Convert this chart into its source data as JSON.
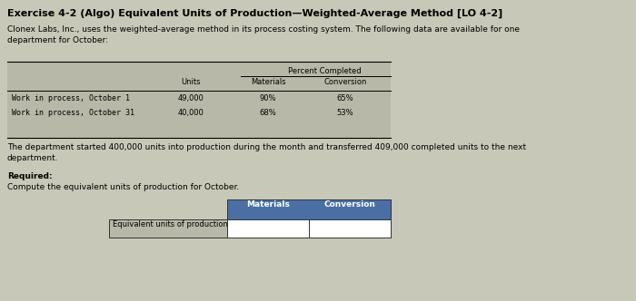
{
  "title": "Exercise 4-2 (Algo) Equivalent Units of Production—Weighted-Average Method [LO 4-2]",
  "intro_text": "Clonex Labs, Inc., uses the weighted-average method in its process costing system. The following data are available for one\ndepartment for October:",
  "table1_header_top": "Percent Completed",
  "table1_col_headers": [
    "Units",
    "Materials",
    "Conversion"
  ],
  "table1_rows": [
    [
      "Work in process, October 1",
      "49,000",
      "90%",
      "65%"
    ],
    [
      "Work in process, October 31",
      "40,000",
      "68%",
      "53%"
    ]
  ],
  "middle_text": "The department started 400,000 units into production during the month and transferred 409,000 completed units to the next\ndepartment.",
  "required_label": "Required:",
  "required_text": "Compute the equivalent units of production for October.",
  "table2_col_headers": [
    "Materials",
    "Conversion"
  ],
  "table2_row_label": "Equivalent units of production",
  "table2_header_bg": "#4a6fa5",
  "table2_header_text_color": "#ffffff",
  "table1_bg": "#b8b8a8",
  "bg_color": "#c8c8b8",
  "text_color": "#000000",
  "fs_title": 8.0,
  "fs_body": 6.5,
  "fs_table": 6.0
}
